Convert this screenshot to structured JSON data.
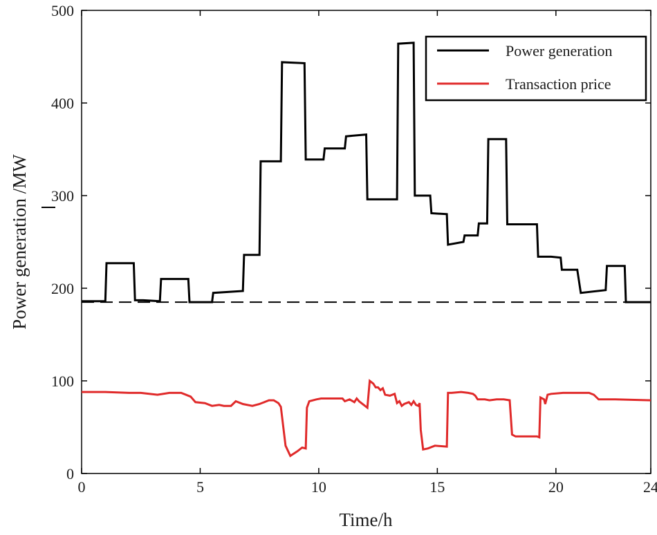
{
  "chart_data": {
    "type": "line",
    "title": "",
    "xlabel": "Time/h",
    "ylabel": "Power generation /MW",
    "xlim": [
      0,
      24
    ],
    "ylim": [
      0,
      500
    ],
    "xticks": [
      0,
      5,
      10,
      15,
      20,
      24
    ],
    "yticks": [
      0,
      100,
      200,
      300,
      400,
      500
    ],
    "grid": false,
    "legend_position": "top-right",
    "baseline": {
      "value": 185,
      "style": "dashed",
      "color": "#000000"
    },
    "series": [
      {
        "name": "Power generation",
        "color": "#000000",
        "points": [
          [
            0,
            186
          ],
          [
            1,
            186
          ],
          [
            1.05,
            227
          ],
          [
            2.2,
            227
          ],
          [
            2.25,
            187
          ],
          [
            2.6,
            187
          ],
          [
            3.3,
            186
          ],
          [
            3.35,
            210
          ],
          [
            4.5,
            210
          ],
          [
            4.55,
            185
          ],
          [
            5.5,
            185
          ],
          [
            5.55,
            195
          ],
          [
            6.8,
            197
          ],
          [
            6.85,
            236
          ],
          [
            7.5,
            236
          ],
          [
            7.55,
            337
          ],
          [
            8.4,
            337
          ],
          [
            8.45,
            444
          ],
          [
            9.4,
            443
          ],
          [
            9.45,
            339
          ],
          [
            10.2,
            339
          ],
          [
            10.25,
            351
          ],
          [
            11.1,
            351
          ],
          [
            11.15,
            364
          ],
          [
            12,
            366
          ],
          [
            12.05,
            296
          ],
          [
            13.3,
            296
          ],
          [
            13.35,
            464
          ],
          [
            14,
            465
          ],
          [
            14.05,
            300
          ],
          [
            14.7,
            300
          ],
          [
            14.75,
            281
          ],
          [
            15.4,
            280
          ],
          [
            15.45,
            247
          ],
          [
            16.1,
            250
          ],
          [
            16.15,
            257
          ],
          [
            16.7,
            257
          ],
          [
            16.75,
            270
          ],
          [
            17.1,
            270
          ],
          [
            17.15,
            361
          ],
          [
            17.9,
            361
          ],
          [
            17.95,
            269
          ],
          [
            19.2,
            269
          ],
          [
            19.25,
            234
          ],
          [
            19.8,
            234
          ],
          [
            20.2,
            233
          ],
          [
            20.25,
            220
          ],
          [
            20.9,
            220
          ],
          [
            21.05,
            195
          ],
          [
            22.1,
            198
          ],
          [
            22.15,
            224
          ],
          [
            22.9,
            224
          ],
          [
            22.95,
            185
          ],
          [
            24,
            185
          ]
        ]
      },
      {
        "name": "Transaction price",
        "color": "#e02a2a",
        "points": [
          [
            0,
            88
          ],
          [
            1,
            88
          ],
          [
            2,
            87
          ],
          [
            2.5,
            87
          ],
          [
            3.2,
            85
          ],
          [
            3.7,
            87
          ],
          [
            4.2,
            87
          ],
          [
            4.6,
            83
          ],
          [
            4.8,
            77
          ],
          [
            5.2,
            76
          ],
          [
            5.5,
            73
          ],
          [
            5.8,
            74
          ],
          [
            6,
            73
          ],
          [
            6.3,
            73
          ],
          [
            6.5,
            78
          ],
          [
            6.8,
            75
          ],
          [
            7.2,
            73
          ],
          [
            7.5,
            75
          ],
          [
            7.9,
            79
          ],
          [
            8.1,
            79
          ],
          [
            8.3,
            76
          ],
          [
            8.4,
            72
          ],
          [
            8.6,
            30
          ],
          [
            8.8,
            19
          ],
          [
            9.1,
            24
          ],
          [
            9.3,
            28
          ],
          [
            9.45,
            27
          ],
          [
            9.5,
            71
          ],
          [
            9.6,
            78
          ],
          [
            9.9,
            80
          ],
          [
            10.1,
            81
          ],
          [
            10.4,
            81
          ],
          [
            11,
            81
          ],
          [
            11.1,
            78
          ],
          [
            11.3,
            80
          ],
          [
            11.5,
            77
          ],
          [
            11.6,
            81
          ],
          [
            11.7,
            78
          ],
          [
            11.8,
            76
          ],
          [
            11.95,
            73
          ],
          [
            12.05,
            71
          ],
          [
            12.15,
            100
          ],
          [
            12.3,
            97
          ],
          [
            12.4,
            93
          ],
          [
            12.5,
            93
          ],
          [
            12.6,
            90
          ],
          [
            12.7,
            92
          ],
          [
            12.8,
            85
          ],
          [
            13,
            84
          ],
          [
            13.1,
            85
          ],
          [
            13.2,
            86
          ],
          [
            13.3,
            76
          ],
          [
            13.4,
            78
          ],
          [
            13.5,
            73
          ],
          [
            13.6,
            75
          ],
          [
            13.8,
            77
          ],
          [
            13.9,
            74
          ],
          [
            14,
            78
          ],
          [
            14.1,
            74
          ],
          [
            14.2,
            73
          ],
          [
            14.25,
            76
          ],
          [
            14.3,
            47
          ],
          [
            14.4,
            26
          ],
          [
            14.6,
            27
          ],
          [
            14.9,
            30
          ],
          [
            15.4,
            29
          ],
          [
            15.45,
            87
          ],
          [
            15.6,
            87
          ],
          [
            16,
            88
          ],
          [
            16.3,
            87
          ],
          [
            16.5,
            86
          ],
          [
            16.6,
            84
          ],
          [
            16.7,
            80
          ],
          [
            17,
            80
          ],
          [
            17.2,
            79
          ],
          [
            17.5,
            80
          ],
          [
            17.8,
            80
          ],
          [
            18.05,
            79
          ],
          [
            18.15,
            42
          ],
          [
            18.3,
            40
          ],
          [
            18.7,
            40
          ],
          [
            19.2,
            40
          ],
          [
            19.3,
            39
          ],
          [
            19.35,
            82
          ],
          [
            19.5,
            80
          ],
          [
            19.55,
            75
          ],
          [
            19.65,
            85
          ],
          [
            19.8,
            86
          ],
          [
            20.3,
            87
          ],
          [
            21,
            87
          ],
          [
            21.4,
            87
          ],
          [
            21.6,
            85
          ],
          [
            21.8,
            80
          ],
          [
            22.5,
            80
          ],
          [
            24,
            79
          ]
        ]
      }
    ]
  }
}
